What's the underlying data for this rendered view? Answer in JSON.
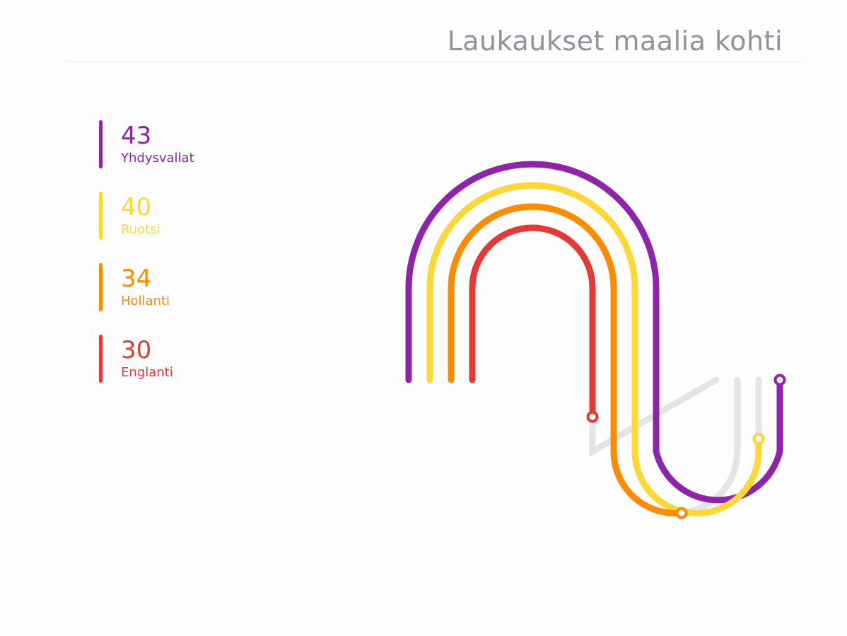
{
  "chart_data": {
    "type": "bar",
    "title": "Laukaukset maalia kohti",
    "categories": [
      "Yhdysvallat",
      "Ruotsi",
      "Hollanti",
      "Englanti"
    ],
    "values": [
      43,
      40,
      34,
      30
    ],
    "colors": [
      "#8e24aa",
      "#fdd835",
      "#fb8c00",
      "#e53935"
    ],
    "track_color": "#e4e4e6",
    "max_value": 43
  }
}
